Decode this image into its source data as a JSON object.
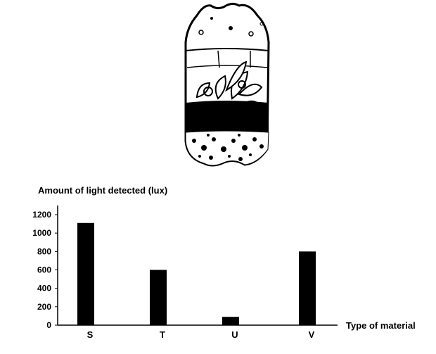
{
  "illustration": {
    "icon": "bottle-terrarium-icon"
  },
  "chart_data": {
    "type": "bar",
    "title": "",
    "ylabel": "Amount of light detected (lux)",
    "xlabel": "Type of material",
    "categories": [
      "S",
      "T",
      "U",
      "V"
    ],
    "values": [
      1110,
      600,
      90,
      800
    ],
    "ylim": [
      0,
      1200
    ],
    "yticks": [
      0,
      200,
      400,
      600,
      800,
      1000,
      1200
    ],
    "bar_color": "#000000",
    "grid": false,
    "legend": "none"
  }
}
